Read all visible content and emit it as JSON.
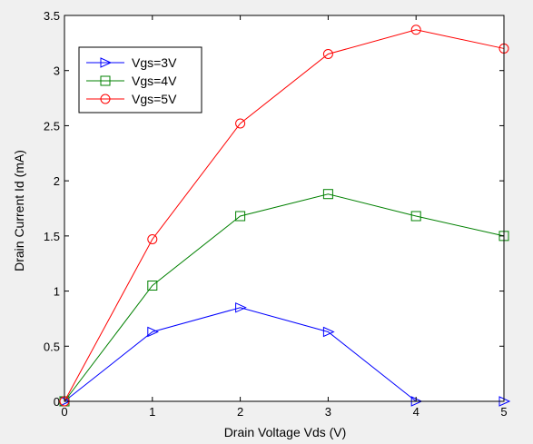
{
  "chart_data": {
    "type": "line",
    "xlabel": "Drain Voltage Vds (V)",
    "ylabel": "Drain Current Id (mA)",
    "xlim": [
      0,
      5
    ],
    "ylim": [
      0,
      3.5
    ],
    "x_ticks": [
      "0",
      "1",
      "2",
      "3",
      "4",
      "5"
    ],
    "y_ticks": [
      "0",
      "0.5",
      "1",
      "1.5",
      "2",
      "2.5",
      "3",
      "3.5"
    ],
    "grid": false,
    "legend_position": "top-left",
    "x": [
      0,
      1,
      2,
      3,
      4,
      5
    ],
    "series": [
      {
        "name": "Vgs=3V",
        "color": "#0000ff",
        "marker": "triangle-right",
        "values": [
          0,
          0.63,
          0.85,
          0.63,
          0,
          0
        ]
      },
      {
        "name": "Vgs=4V",
        "color": "#008000",
        "marker": "square",
        "values": [
          0,
          1.05,
          1.68,
          1.88,
          1.68,
          1.5
        ]
      },
      {
        "name": "Vgs=5V",
        "color": "#ff0000",
        "marker": "circle",
        "values": [
          0,
          1.47,
          2.52,
          3.15,
          3.37,
          3.2
        ]
      }
    ]
  }
}
